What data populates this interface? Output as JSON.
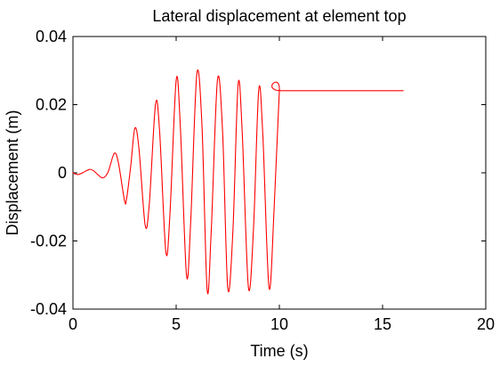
{
  "chart_data": {
    "type": "line",
    "title": "Lateral displacement at element top",
    "xlabel": "Time (s)",
    "ylabel": "Displacement (m)",
    "xlim": [
      0,
      20
    ],
    "ylim": [
      -0.04,
      0.04
    ],
    "xticks": [
      0,
      5,
      10,
      15,
      20
    ],
    "xtick_labels": [
      "0",
      "5",
      "10",
      "15",
      "20"
    ],
    "yticks": [
      -0.04,
      -0.02,
      0,
      0.02,
      0.04
    ],
    "ytick_labels": [
      "-0.04",
      "-0.02",
      "0",
      "0.02",
      "0.04"
    ],
    "grid": false,
    "series": [
      {
        "color": "#ff0000",
        "x": [
          0,
          0.1,
          0.25,
          0.5,
          0.8,
          1.0,
          1.2,
          1.45,
          1.7,
          2.0,
          2.2,
          2.5,
          2.6,
          2.8,
          3.0,
          3.2,
          3.5,
          3.7,
          4.0,
          4.2,
          4.5,
          4.7,
          5.0,
          5.2,
          5.5,
          5.7,
          6.0,
          6.25,
          6.5,
          6.7,
          7.0,
          7.25,
          7.5,
          7.75,
          8.0,
          8.2,
          8.5,
          8.75,
          9.0,
          9.2,
          9.5,
          9.75,
          10.0,
          10.1,
          16.0
        ],
        "y": [
          0,
          -0.0003,
          -0.0005,
          0.0001,
          0.001,
          0.0006,
          -0.0005,
          -0.0015,
          0.0002,
          0.0057,
          0.003,
          -0.0082,
          -0.0075,
          0.002,
          0.0131,
          0.007,
          -0.0154,
          -0.009,
          0.0201,
          0.012,
          -0.0232,
          -0.012,
          0.0271,
          0.014,
          -0.0299,
          -0.015,
          0.0289,
          0.014,
          -0.0343,
          -0.017,
          0.0272,
          0.012,
          -0.0338,
          -0.017,
          0.0258,
          0.012,
          -0.0336,
          -0.016,
          0.0243,
          0.011,
          -0.0338,
          -0.01,
          0.0241,
          0.0241,
          0.0241
        ]
      }
    ]
  }
}
